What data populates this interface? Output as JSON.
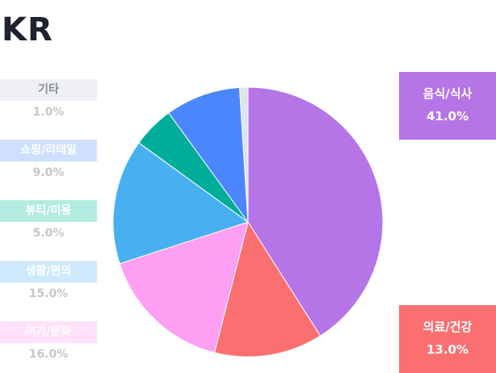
{
  "header": {
    "title": "KR"
  },
  "chart_data": {
    "type": "pie",
    "title": "KR",
    "slices": [
      {
        "label": "음식/식사",
        "value": 41.0,
        "display": "41.0%",
        "color": "#b675e6",
        "light": "#b675e6"
      },
      {
        "label": "의료/건강",
        "value": 13.0,
        "display": "13.0%",
        "color": "#fa6f6f",
        "light": "#fa6f6f"
      },
      {
        "label": "여가/문화",
        "value": 16.0,
        "display": "16.0%",
        "color": "#ff9ff3",
        "light": "#ffe0fa"
      },
      {
        "label": "생활/편의",
        "value": 15.0,
        "display": "15.0%",
        "color": "#48b0f1",
        "light": "#cde9fb"
      },
      {
        "label": "뷰티/미용",
        "value": 5.0,
        "display": "5.0%",
        "color": "#00ad99",
        "light": "#b3ece0"
      },
      {
        "label": "쇼핑/리테일",
        "value": 9.0,
        "display": "9.0%",
        "color": "#4b86fd",
        "light": "#cfe0ff"
      },
      {
        "label": "기타",
        "value": 1.0,
        "display": "1.0%",
        "color": "#dde3f0",
        "light": "#eef0f5"
      }
    ]
  }
}
